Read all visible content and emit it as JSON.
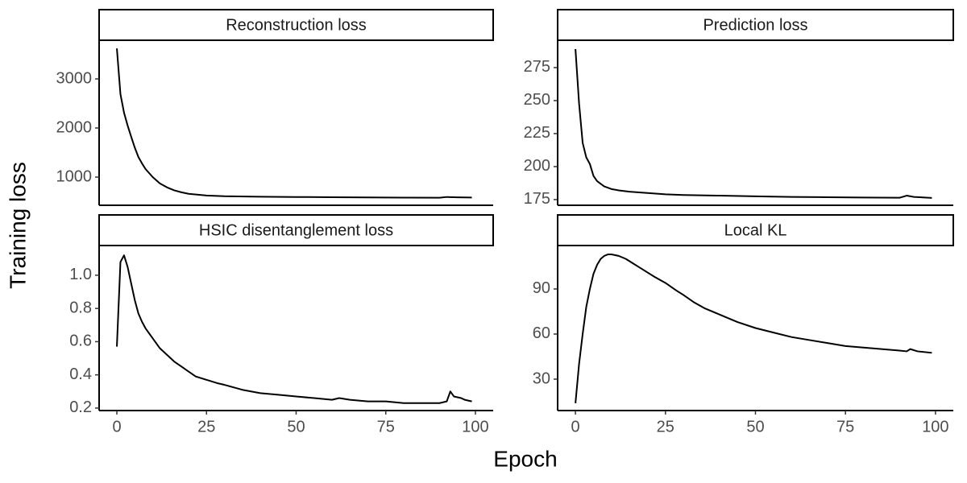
{
  "ylabel": "Training loss",
  "xlabel": "Epoch",
  "chart_data": [
    {
      "type": "line",
      "title": "Reconstruction loss",
      "color": "#000000",
      "x": [
        0,
        1,
        2,
        3,
        4,
        5,
        6,
        7,
        8,
        10,
        12,
        14,
        16,
        18,
        20,
        25,
        30,
        40,
        50,
        60,
        70,
        80,
        90,
        92,
        95,
        99
      ],
      "values": [
        3620,
        2689,
        2311,
        2050,
        1820,
        1600,
        1410,
        1280,
        1164,
        1000,
        870,
        790,
        730,
        690,
        660,
        625,
        610,
        600,
        595,
        590,
        585,
        582,
        580,
        595,
        588,
        583
      ],
      "xlim": [
        -4.95,
        104.95
      ],
      "ylim": [
        426,
        3787
      ],
      "yticks": [
        1000,
        2000,
        3000
      ]
    },
    {
      "type": "line",
      "title": "Prediction loss",
      "color": "#000000",
      "x": [
        0,
        1,
        2,
        3,
        4,
        5,
        6,
        7,
        8,
        10,
        12,
        15,
        20,
        25,
        30,
        40,
        50,
        60,
        70,
        80,
        90,
        92,
        94,
        99
      ],
      "values": [
        289,
        248,
        218,
        207,
        202,
        193,
        189,
        187,
        185,
        183,
        182,
        181,
        180,
        179,
        178.5,
        178,
        177.5,
        177,
        176.8,
        176.6,
        176.4,
        178,
        177,
        176.3
      ],
      "xlim": [
        -4.95,
        104.95
      ],
      "ylim": [
        170.7,
        295.7
      ],
      "yticks": [
        175,
        200,
        225,
        250,
        275
      ]
    },
    {
      "type": "line",
      "title": "HSIC disentanglement loss",
      "color": "#000000",
      "x": [
        0,
        1,
        2,
        3,
        4,
        5,
        6,
        7,
        8,
        10,
        12,
        14,
        16,
        18,
        20,
        22,
        25,
        28,
        30,
        35,
        40,
        45,
        50,
        55,
        60,
        62,
        65,
        70,
        75,
        80,
        85,
        90,
        92,
        93,
        94,
        96,
        97,
        99
      ],
      "values": [
        0.57,
        1.08,
        1.12,
        1.05,
        0.95,
        0.85,
        0.77,
        0.72,
        0.68,
        0.62,
        0.56,
        0.52,
        0.48,
        0.45,
        0.42,
        0.39,
        0.37,
        0.35,
        0.34,
        0.31,
        0.29,
        0.28,
        0.27,
        0.26,
        0.25,
        0.26,
        0.25,
        0.24,
        0.24,
        0.23,
        0.23,
        0.23,
        0.24,
        0.3,
        0.27,
        0.26,
        0.25,
        0.24
      ],
      "xlim": [
        -4.95,
        104.95
      ],
      "ylim": [
        0.185,
        1.179
      ],
      "yticks": [
        {
          "value": 0.2,
          "label": "0.2"
        },
        {
          "value": 0.4,
          "label": "0.4"
        },
        {
          "value": 0.6,
          "label": "0.6"
        },
        {
          "value": 0.8,
          "label": "0.8"
        },
        {
          "value": 1,
          "label": "1.0"
        }
      ],
      "xticks": [
        0,
        25,
        50,
        75,
        100
      ]
    },
    {
      "type": "line",
      "title": "Local KL",
      "color": "#000000",
      "x": [
        0,
        1,
        2,
        3,
        4,
        5,
        6,
        7,
        8,
        9,
        10,
        12,
        14,
        16,
        18,
        20,
        22,
        25,
        28,
        30,
        33,
        36,
        40,
        45,
        50,
        55,
        60,
        65,
        70,
        75,
        80,
        85,
        90,
        92,
        93,
        95,
        99
      ],
      "values": [
        14,
        40,
        60,
        78,
        90,
        100,
        106,
        110,
        112,
        113,
        113,
        112,
        110,
        107,
        104,
        101,
        98,
        94,
        89,
        86,
        81,
        77,
        73,
        68,
        64,
        61,
        58,
        56,
        54,
        52,
        51,
        50,
        49,
        48.5,
        50,
        48.5,
        47.5
      ],
      "xlim": [
        -4.95,
        104.95
      ],
      "ylim": [
        9.1,
        118.9
      ],
      "yticks": [
        30,
        60,
        90
      ],
      "xticks": [
        0,
        25,
        50,
        75,
        100
      ]
    }
  ]
}
